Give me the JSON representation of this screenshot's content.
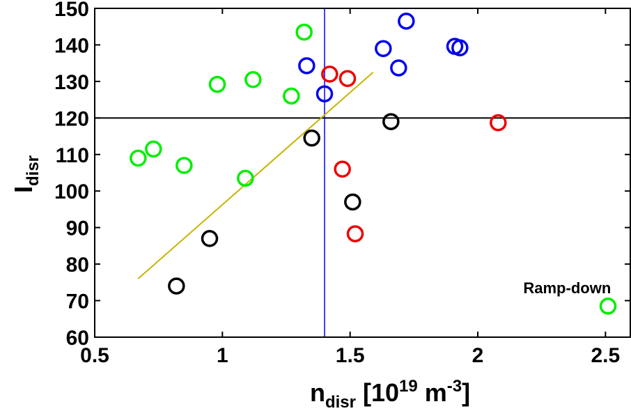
{
  "chart_data": {
    "type": "scatter",
    "title": "",
    "xlabel": {
      "main": "n",
      "sub": "disr",
      "rest": " [10",
      "sup": "19",
      "unit": " m",
      "unit_sup": "-3",
      "close": "]"
    },
    "ylabel": {
      "main": "I",
      "sub": "disr"
    },
    "xlim": [
      0.5,
      2.6
    ],
    "ylim": [
      60,
      150
    ],
    "x_ticks": [
      0.5,
      1,
      1.5,
      2,
      2.5
    ],
    "x_tick_labels": [
      "0.5",
      "1",
      "1.5",
      "2",
      "2.5"
    ],
    "y_ticks": [
      60,
      70,
      80,
      90,
      100,
      110,
      120,
      130,
      140,
      150
    ],
    "y_tick_labels": [
      "60",
      "70",
      "80",
      "90",
      "100",
      "110",
      "120",
      "130",
      "140",
      "150"
    ],
    "grid": false,
    "series": [
      {
        "name": "green",
        "color": "#00ee00",
        "marker": "circle",
        "points": [
          [
            0.67,
            109
          ],
          [
            0.73,
            111.5
          ],
          [
            0.85,
            107
          ],
          [
            0.98,
            129.2
          ],
          [
            1.09,
            103.5
          ],
          [
            1.12,
            130.5
          ],
          [
            1.27,
            126
          ],
          [
            1.32,
            143.5
          ],
          [
            2.51,
            68.5
          ]
        ]
      },
      {
        "name": "black",
        "color": "#000000",
        "marker": "circle",
        "points": [
          [
            0.82,
            74
          ],
          [
            0.95,
            87
          ],
          [
            1.35,
            114.5
          ],
          [
            1.51,
            97
          ],
          [
            1.66,
            119
          ]
        ]
      },
      {
        "name": "red",
        "color": "#ee0000",
        "marker": "circle",
        "points": [
          [
            1.42,
            132
          ],
          [
            1.47,
            106
          ],
          [
            1.49,
            130.8
          ],
          [
            1.52,
            88.3
          ],
          [
            2.08,
            118.7
          ]
        ]
      },
      {
        "name": "blue",
        "color": "#0000ee",
        "marker": "circle",
        "points": [
          [
            1.33,
            134.3
          ],
          [
            1.4,
            126.6
          ],
          [
            1.63,
            139
          ],
          [
            1.69,
            133.7
          ],
          [
            1.72,
            146.5
          ],
          [
            1.91,
            139.6
          ],
          [
            1.93,
            139.2
          ]
        ]
      }
    ],
    "reference_lines": [
      {
        "orientation": "horizontal",
        "value": 120,
        "color": "#000000"
      },
      {
        "orientation": "vertical",
        "value": 1.4,
        "color": "#0000ff"
      }
    ],
    "fit_line": {
      "color": "#c8b400",
      "from": [
        0.67,
        76
      ],
      "to": [
        1.59,
        132.5
      ]
    },
    "annotations": [
      {
        "text": "Ramp-down",
        "x": 2.35,
        "y": 72
      }
    ]
  }
}
